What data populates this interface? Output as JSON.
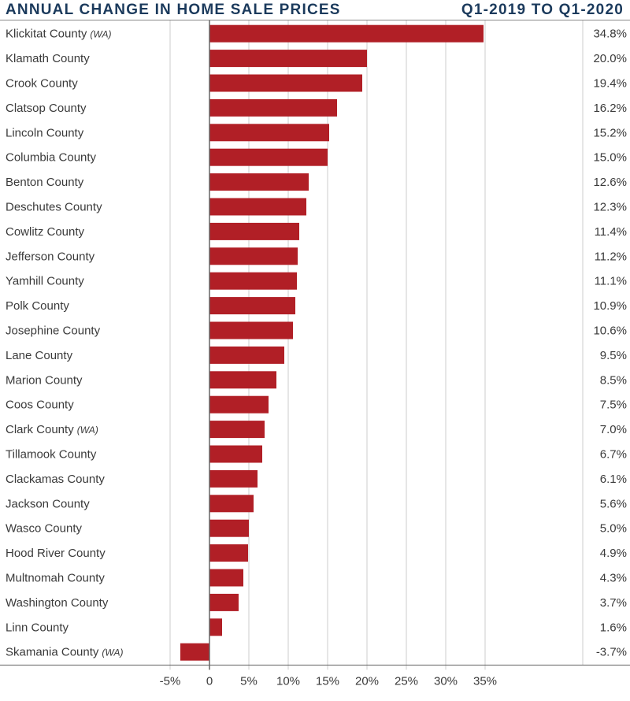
{
  "header": {
    "title": "ANNUAL CHANGE IN HOME SALE PRICES",
    "period": "Q1-2019 TO Q1-2020"
  },
  "colors": {
    "bar": "#b11f26",
    "title": "#1b3a5c",
    "text": "#3a3a3a",
    "grid": "#cccccc",
    "axis": "#666666"
  },
  "chart_data": {
    "type": "bar",
    "orientation": "horizontal",
    "title": "ANNUAL CHANGE IN HOME SALE PRICES",
    "subtitle": "Q1-2019 TO Q1-2020",
    "xlabel": "",
    "ylabel": "",
    "xlim": [
      -5,
      35
    ],
    "x_ticks": [
      -5,
      0,
      5,
      10,
      15,
      20,
      25,
      30,
      35
    ],
    "x_tick_labels": [
      "-5%",
      "0",
      "5%",
      "10%",
      "15%",
      "20%",
      "25%",
      "30%",
      "35%"
    ],
    "grid": true,
    "legend": "none",
    "categories": [
      {
        "name": "Klickitat County",
        "suffix": "(WA)"
      },
      {
        "name": "Klamath County",
        "suffix": ""
      },
      {
        "name": "Crook County",
        "suffix": ""
      },
      {
        "name": "Clatsop County",
        "suffix": ""
      },
      {
        "name": "Lincoln County",
        "suffix": ""
      },
      {
        "name": "Columbia County",
        "suffix": ""
      },
      {
        "name": "Benton County",
        "suffix": ""
      },
      {
        "name": "Deschutes County",
        "suffix": ""
      },
      {
        "name": "Cowlitz County",
        "suffix": ""
      },
      {
        "name": "Jefferson County",
        "suffix": ""
      },
      {
        "name": "Yamhill County",
        "suffix": ""
      },
      {
        "name": "Polk County",
        "suffix": ""
      },
      {
        "name": "Josephine County",
        "suffix": ""
      },
      {
        "name": "Lane County",
        "suffix": ""
      },
      {
        "name": "Marion County",
        "suffix": ""
      },
      {
        "name": "Coos County",
        "suffix": ""
      },
      {
        "name": "Clark County",
        "suffix": "(WA)"
      },
      {
        "name": "Tillamook County",
        "suffix": ""
      },
      {
        "name": "Clackamas County",
        "suffix": ""
      },
      {
        "name": "Jackson County",
        "suffix": ""
      },
      {
        "name": "Wasco County",
        "suffix": ""
      },
      {
        "name": "Hood River County",
        "suffix": ""
      },
      {
        "name": "Multnomah County",
        "suffix": ""
      },
      {
        "name": "Washington County",
        "suffix": ""
      },
      {
        "name": "Linn County",
        "suffix": ""
      },
      {
        "name": "Skamania County",
        "suffix": "(WA)"
      }
    ],
    "values": [
      34.8,
      20.0,
      19.4,
      16.2,
      15.2,
      15.0,
      12.6,
      12.3,
      11.4,
      11.2,
      11.1,
      10.9,
      10.6,
      9.5,
      8.5,
      7.5,
      7.0,
      6.7,
      6.1,
      5.6,
      5.0,
      4.9,
      4.3,
      3.7,
      1.6,
      -3.7
    ],
    "value_labels": [
      "34.8%",
      "20.0%",
      "19.4%",
      "16.2%",
      "15.2%",
      "15.0%",
      "12.6%",
      "12.3%",
      "11.4%",
      "11.2%",
      "11.1%",
      "10.9%",
      "10.6%",
      "9.5%",
      "8.5%",
      "7.5%",
      "7.0%",
      "6.7%",
      "6.1%",
      "5.6%",
      "5.0%",
      "4.9%",
      "4.3%",
      "3.7%",
      "1.6%",
      "-3.7%"
    ]
  }
}
